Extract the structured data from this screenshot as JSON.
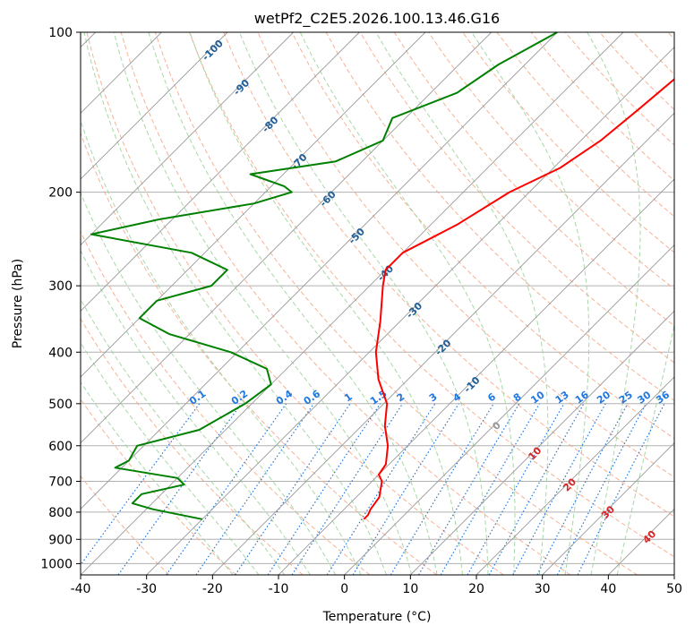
{
  "chart_data": {
    "type": "line",
    "diagram": "skew-t log-p",
    "title": "wetPf2_C2E5.2026.100.13.46.G16",
    "xlabel": "Temperature (°C)",
    "ylabel": "Pressure (hPa)",
    "xlim": [
      -40,
      50
    ],
    "ylim": [
      1050,
      100
    ],
    "y_scale": "log",
    "x_ticks": [
      "-40",
      "-30",
      "-20",
      "-10",
      "0",
      "10",
      "20",
      "30",
      "40",
      "50"
    ],
    "y_ticks": [
      "100",
      "200",
      "300",
      "400",
      "500",
      "600",
      "700",
      "800",
      "900",
      "1000"
    ],
    "grid": true,
    "colors": {
      "temperature": "#ff0000",
      "dewpoint": "#008000",
      "dry_adiabat": "#f4a582",
      "moist_adiabat": "#9fd39f",
      "mixing_ratio": "#1f77e0",
      "isotherm": "#999999",
      "isotherm_label": "#1f5f99",
      "isotherm_label_warm": "#d62728"
    },
    "isotherm_labels": [
      {
        "t": -100,
        "text": "-100"
      },
      {
        "t": -90,
        "text": "-90"
      },
      {
        "t": -80,
        "text": "-80"
      },
      {
        "t": -70,
        "text": "-70"
      },
      {
        "t": -60,
        "text": "-60"
      },
      {
        "t": -50,
        "text": "-50"
      },
      {
        "t": -40,
        "text": "-40"
      },
      {
        "t": -30,
        "text": "-30"
      },
      {
        "t": -20,
        "text": "-20"
      },
      {
        "t": -10,
        "text": "-10"
      },
      {
        "t": 0,
        "text": "0"
      },
      {
        "t": 10,
        "text": "10"
      },
      {
        "t": 20,
        "text": "20"
      },
      {
        "t": 30,
        "text": "30"
      },
      {
        "t": 40,
        "text": "40"
      }
    ],
    "mixing_ratio_labels": [
      "0.1",
      "0.2",
      "0.4",
      "0.6",
      "1",
      "1.5",
      "2",
      "3",
      "4",
      "6",
      "8",
      "10",
      "13",
      "16",
      "20",
      "25",
      "30",
      "36"
    ],
    "series": [
      {
        "name": "temperature",
        "points": [
          [
            100,
            -26.5
          ],
          [
            120,
            -25
          ],
          [
            140,
            -26
          ],
          [
            160,
            -27
          ],
          [
            180,
            -29
          ],
          [
            200,
            -33
          ],
          [
            230,
            -36
          ],
          [
            260,
            -40
          ],
          [
            280,
            -40
          ],
          [
            300,
            -38
          ],
          [
            350,
            -33
          ],
          [
            400,
            -29
          ],
          [
            450,
            -24.5
          ],
          [
            500,
            -19.5
          ],
          [
            550,
            -16.5
          ],
          [
            600,
            -13
          ],
          [
            650,
            -10.5
          ],
          [
            680,
            -10
          ],
          [
            700,
            -8.5
          ],
          [
            750,
            -6.5
          ],
          [
            790,
            -6
          ],
          [
            810,
            -5.5
          ],
          [
            825,
            -5.5
          ]
        ]
      },
      {
        "name": "dewpoint",
        "points": [
          [
            100,
            -50
          ],
          [
            115,
            -54
          ],
          [
            130,
            -56
          ],
          [
            145,
            -62
          ],
          [
            160,
            -60
          ],
          [
            175,
            -64
          ],
          [
            185,
            -75
          ],
          [
            195,
            -68
          ],
          [
            200,
            -66
          ],
          [
            210,
            -70
          ],
          [
            225,
            -82
          ],
          [
            240,
            -90
          ],
          [
            260,
            -72
          ],
          [
            280,
            -64
          ],
          [
            300,
            -64
          ],
          [
            320,
            -70
          ],
          [
            345,
            -70
          ],
          [
            370,
            -63
          ],
          [
            400,
            -51
          ],
          [
            430,
            -43
          ],
          [
            460,
            -40
          ],
          [
            500,
            -41
          ],
          [
            560,
            -44
          ],
          [
            600,
            -51
          ],
          [
            640,
            -50
          ],
          [
            660,
            -51
          ],
          [
            690,
            -40
          ],
          [
            710,
            -38
          ],
          [
            740,
            -43
          ],
          [
            770,
            -43
          ],
          [
            790,
            -39
          ],
          [
            825,
            -30
          ]
        ]
      }
    ]
  }
}
